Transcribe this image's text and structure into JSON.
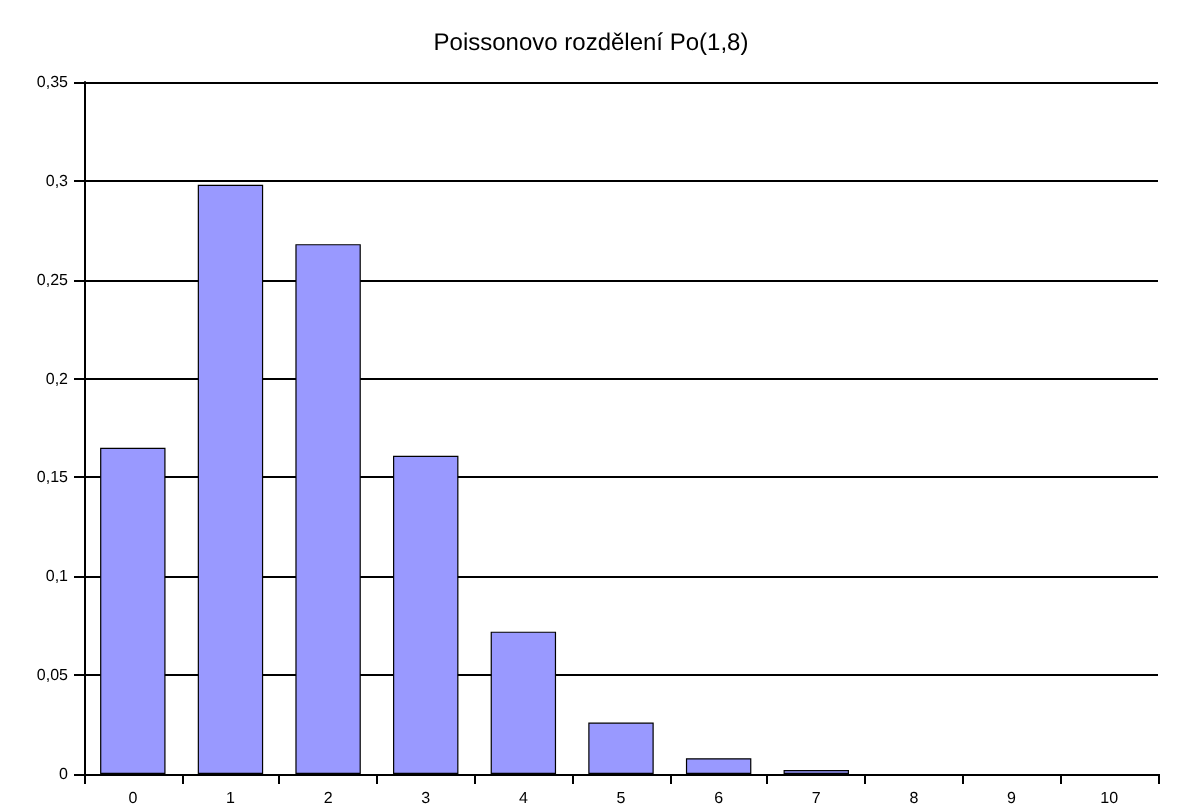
{
  "chart_data": {
    "type": "bar",
    "title": "Poissonovo rozdělení Po(1,8)",
    "categories": [
      "0",
      "1",
      "2",
      "3",
      "4",
      "5",
      "6",
      "7",
      "8",
      "9",
      "10"
    ],
    "values": [
      0.165,
      0.298,
      0.268,
      0.161,
      0.072,
      0.026,
      0.008,
      0.002,
      0,
      0,
      0
    ],
    "color": "#9999ff",
    "ylim": [
      0,
      0.35
    ],
    "yticks": [
      0,
      {
        "value": 0.05,
        "label": "0,05"
      },
      {
        "value": 0.1,
        "label": "0,1"
      },
      {
        "value": 0.15,
        "label": "0,15"
      },
      {
        "value": 0.2,
        "label": "0,2"
      },
      {
        "value": 0.25,
        "label": "0,25"
      },
      {
        "value": 0.3,
        "label": "0,3"
      },
      {
        "value": 0.35,
        "label": "0,35"
      }
    ],
    "grid": "y"
  }
}
